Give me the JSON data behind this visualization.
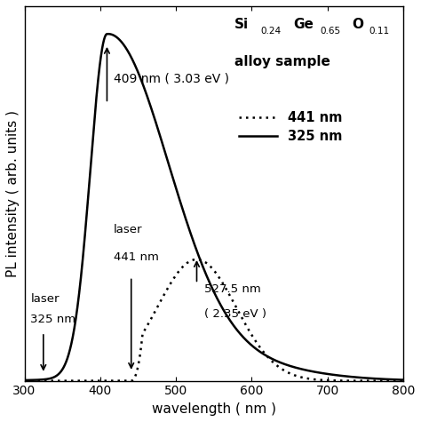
{
  "xlim": [
    300,
    800
  ],
  "ylim": [
    0,
    1.08
  ],
  "xlabel": "wavelength ( nm )",
  "ylabel": "PL intensity ( arb. units )",
  "xticks": [
    300,
    400,
    500,
    600,
    700,
    800
  ],
  "annotation_409": "409 nm ( 3.03 eV )",
  "annotation_527_line1": "527.5 nm",
  "annotation_527_line2": "( 2.35 eV )",
  "annotation_laser_325_line1": "laser",
  "annotation_laser_325_line2": "325 nm",
  "annotation_laser_441_line1": "laser",
  "annotation_laser_441_line2": "441 nm",
  "legend_title": "alloy sample",
  "legend_line1": "441 nm",
  "legend_line2": "325 nm",
  "formula_Si": "Si",
  "formula_Si_sub": "0.24",
  "formula_Ge": "Ge",
  "formula_Ge_sub": "0.65",
  "formula_O": "O",
  "formula_O_sub": "0.11",
  "background_color": "#ffffff",
  "line_color": "#000000"
}
